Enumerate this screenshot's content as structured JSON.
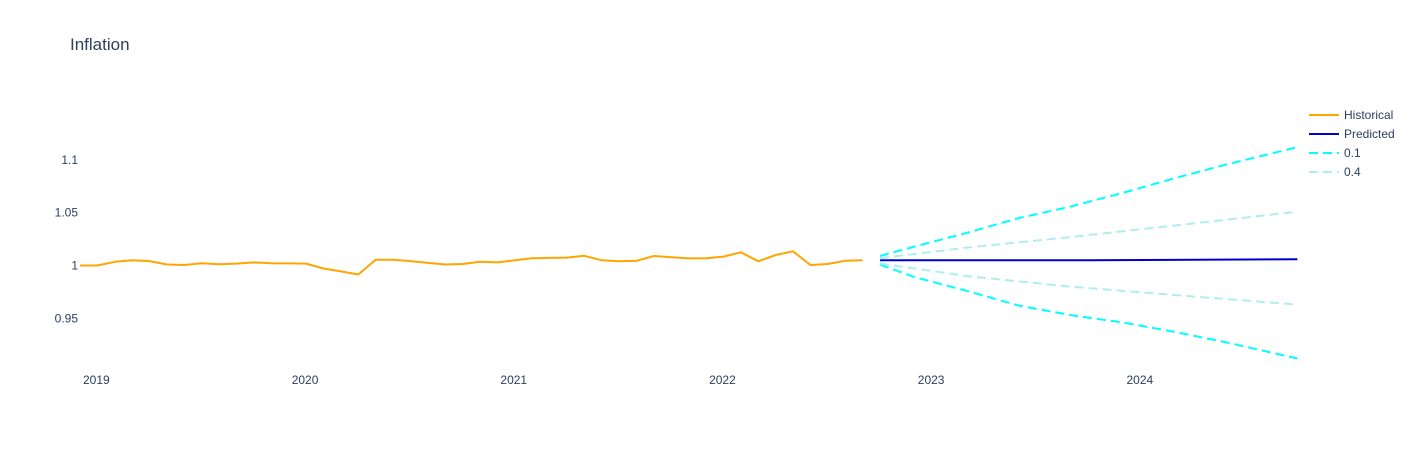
{
  "chart_data": {
    "type": "line",
    "title": "Inflation",
    "xlabel": "",
    "ylabel": "",
    "x_range": [
      "2019-01",
      "2024-10"
    ],
    "ylim": [
      0.903,
      1.152
    ],
    "x_ticks": [
      {
        "label": "2019",
        "value": "2019-01"
      },
      {
        "label": "2020",
        "value": "2020-01"
      },
      {
        "label": "2021",
        "value": "2021-01"
      },
      {
        "label": "2022",
        "value": "2022-01"
      },
      {
        "label": "2023",
        "value": "2023-01"
      },
      {
        "label": "2024",
        "value": "2024-01"
      }
    ],
    "y_ticks": [
      {
        "label": "0.95",
        "value": 0.95
      },
      {
        "label": "1",
        "value": 1.0
      },
      {
        "label": "1.05",
        "value": 1.05
      },
      {
        "label": "1.1",
        "value": 1.1
      }
    ],
    "legend_position": "top-right",
    "series": [
      {
        "name": "Historical",
        "color": "#FFA500",
        "dash": "solid",
        "x": [
          "2019-01",
          "2019-02",
          "2019-03",
          "2019-04",
          "2019-05",
          "2019-06",
          "2019-07",
          "2019-08",
          "2019-09",
          "2019-10",
          "2019-11",
          "2019-12",
          "2020-01",
          "2020-02",
          "2020-03",
          "2020-04",
          "2020-05",
          "2020-06",
          "2020-07",
          "2020-08",
          "2020-09",
          "2020-10",
          "2020-11",
          "2020-12",
          "2021-01",
          "2021-02",
          "2021-03",
          "2021-04",
          "2021-05",
          "2021-06",
          "2021-07",
          "2021-08",
          "2021-09",
          "2021-10",
          "2021-11",
          "2021-12",
          "2022-01",
          "2022-02",
          "2022-03",
          "2022-04",
          "2022-05",
          "2022-06",
          "2022-07",
          "2022-08",
          "2022-09",
          "2022-10"
        ],
        "y": [
          1.0,
          1.0,
          1.0035,
          1.005,
          1.0042,
          1.001,
          1.0005,
          1.0022,
          1.0012,
          1.0018,
          1.003,
          1.0022,
          1.002,
          1.0018,
          0.9972,
          0.9945,
          0.9915,
          1.0055,
          1.0055,
          1.0042,
          1.0025,
          1.001,
          1.0015,
          1.0035,
          1.003,
          1.005,
          1.007,
          1.0072,
          1.0075,
          1.0092,
          1.005,
          1.004,
          1.0045,
          1.009,
          1.0078,
          1.0068,
          1.007,
          1.0085,
          1.0125,
          1.004,
          1.01,
          1.0135,
          1.0005,
          1.0015,
          1.0045,
          1.005
        ]
      },
      {
        "name": "Predicted",
        "color": "#0000CD",
        "dash": "solid",
        "x": [
          "2022-11",
          "2023-11",
          "2024-11"
        ],
        "y": [
          1.005,
          1.005,
          1.006
        ]
      },
      {
        "name": "0.1",
        "color": "#00FFFF",
        "dash": "dash",
        "x": [
          "2022-11",
          "2023-01",
          "2023-04",
          "2023-07",
          "2023-10",
          "2024-01",
          "2024-04",
          "2024-07",
          "2024-11"
        ],
        "y": [
          1.009,
          1.018,
          1.031,
          1.045,
          1.056,
          1.069,
          1.083,
          1.096,
          1.112
        ]
      },
      {
        "name": "0.1",
        "color": "#00FFFF",
        "dash": "dash",
        "showlegend": false,
        "x": [
          "2022-11",
          "2023-01",
          "2023-04",
          "2023-07",
          "2023-10",
          "2024-01",
          "2024-04",
          "2024-07",
          "2024-11"
        ],
        "y": [
          1.001,
          0.989,
          0.976,
          0.962,
          0.953,
          0.946,
          0.937,
          0.927,
          0.912
        ]
      },
      {
        "name": "0.4",
        "color": "#AFEEEE",
        "dash": "dash",
        "x": [
          "2022-11",
          "2023-04",
          "2023-10",
          "2024-04",
          "2024-11"
        ],
        "y": [
          1.007,
          1.017,
          1.027,
          1.038,
          1.051
        ]
      },
      {
        "name": "0.4",
        "color": "#AFEEEE",
        "dash": "dash",
        "showlegend": false,
        "x": [
          "2022-11",
          "2023-04",
          "2023-10",
          "2024-04",
          "2024-11"
        ],
        "y": [
          1.002,
          0.99,
          0.98,
          0.972,
          0.963
        ]
      }
    ]
  }
}
